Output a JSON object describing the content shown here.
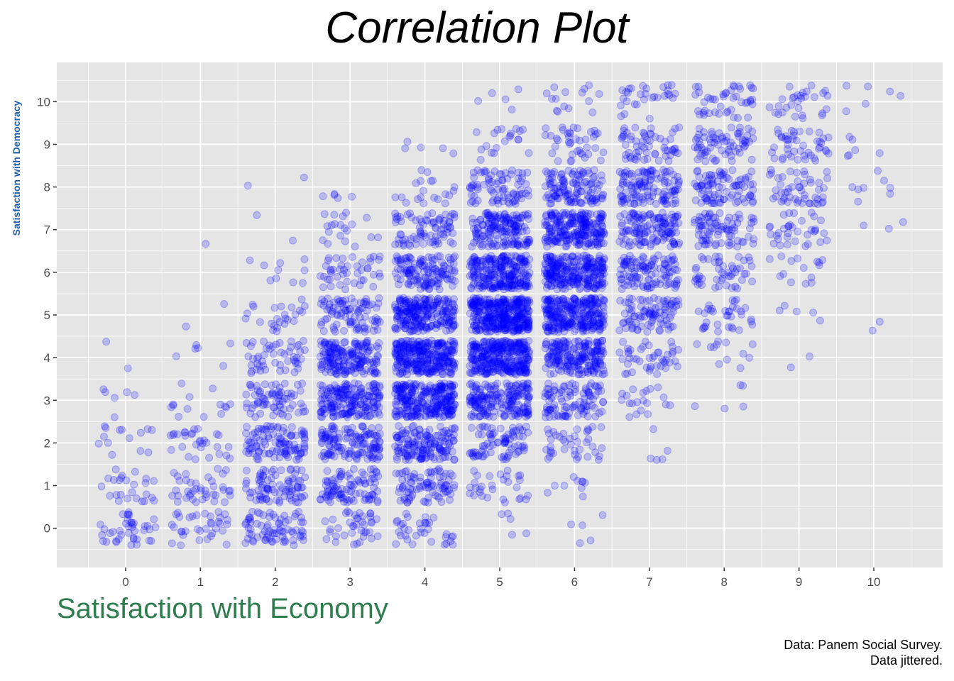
{
  "title": "Correlation Plot",
  "colors": {
    "ylabel": "#1f5fa8",
    "xlabel": "#2e7d4f",
    "points": "#0000ff",
    "panel": "#e5e5e5",
    "grid": "#ffffff"
  },
  "caption": {
    "line1": "Data: Panem Social Survey.",
    "line2": "Data jittered."
  },
  "chart_data": {
    "type": "scatter",
    "title": "Correlation Plot",
    "xlabel": "Satisfaction with Economy",
    "ylabel": "Satisfaction with Democracy",
    "x_ticks": [
      0,
      1,
      2,
      3,
      4,
      5,
      6,
      7,
      8,
      9,
      10
    ],
    "y_ticks": [
      0,
      1,
      2,
      3,
      4,
      5,
      6,
      7,
      8,
      9,
      10
    ],
    "xlim": [
      -0.92,
      10.92
    ],
    "ylim": [
      -0.92,
      10.92
    ],
    "grid": true,
    "jitter": 0.4,
    "point_alpha": 0.2,
    "columns": [
      {
        "x": 0,
        "counts": [
          40,
          25,
          14,
          6,
          2,
          0,
          0,
          0,
          0,
          0,
          0
        ]
      },
      {
        "x": 1,
        "counts": [
          35,
          40,
          30,
          14,
          6,
          2,
          0,
          1,
          0,
          0,
          0
        ]
      },
      {
        "x": 2,
        "counts": [
          75,
          85,
          105,
          70,
          50,
          25,
          10,
          2,
          2,
          0,
          0
        ]
      },
      {
        "x": 3,
        "counts": [
          40,
          95,
          135,
          190,
          180,
          90,
          45,
          20,
          5,
          0,
          0
        ]
      },
      {
        "x": 4,
        "counts": [
          35,
          85,
          150,
          270,
          300,
          240,
          130,
          80,
          20,
          5,
          0
        ]
      },
      {
        "x": 5,
        "counts": [
          5,
          30,
          80,
          190,
          320,
          370,
          250,
          165,
          80,
          20,
          5
        ]
      },
      {
        "x": 6,
        "counts": [
          5,
          10,
          40,
          100,
          200,
          280,
          260,
          230,
          120,
          40,
          15
        ]
      },
      {
        "x": 7,
        "counts": [
          0,
          0,
          5,
          20,
          45,
          90,
          110,
          130,
          120,
          60,
          30
        ]
      },
      {
        "x": 8,
        "counts": [
          0,
          0,
          0,
          5,
          12,
          35,
          50,
          80,
          90,
          70,
          45
        ]
      },
      {
        "x": 9,
        "counts": [
          0,
          0,
          0,
          0,
          2,
          5,
          15,
          35,
          50,
          45,
          30
        ]
      },
      {
        "x": 10,
        "counts": [
          0,
          0,
          0,
          0,
          0,
          2,
          0,
          3,
          8,
          6,
          6
        ]
      }
    ]
  }
}
